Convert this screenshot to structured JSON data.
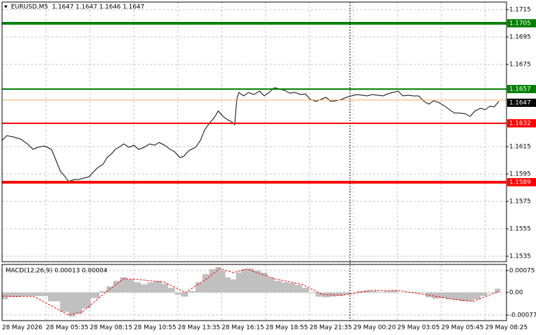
{
  "chart_data": [
    {
      "type": "line",
      "title": "EURUSD,M5  1.1647 1.1647 1.1646 1.1647",
      "color": "#000000",
      "x": [
        0,
        3.5,
        8.5,
        13.5,
        18.5,
        22.5,
        26,
        31,
        36,
        39.5,
        42.5,
        46,
        48.5,
        52.5,
        56,
        59.5,
        63.5,
        66,
        69.5,
        73.5,
        76.5,
        79.5,
        82.5,
        86,
        88.5,
        92.5,
        96,
        99.5,
        103.5,
        107.5,
        111,
        114.5,
        118.5,
        122.5,
        126,
        129.5,
        132.5,
        136,
        141,
        144.5,
        147.5,
        151,
        154.5,
        157.5,
        161,
        164.5,
        167.5,
        169.5,
        171,
        172.5,
        176,
        179.5,
        183.5,
        187.5,
        191,
        194.5,
        198.5,
        202.5,
        206,
        209.5,
        213.5,
        217.5,
        221,
        224.5,
        228.5,
        232.5,
        236,
        239.5,
        243.5,
        247.5,
        251,
        254.5,
        258.5,
        262.5,
        266,
        269.5,
        273.5,
        277.5,
        281,
        284.5,
        288.5,
        292,
        296,
        299.5,
        303.5,
        307.5,
        311,
        314.5,
        318.5,
        322.5,
        326,
        329.5,
        333.5,
        337.5,
        341,
        344.5,
        348.5,
        352,
        355.5,
        358.5,
        362
      ],
      "values": [
        1.16195,
        1.1623,
        1.1622,
        1.16205,
        1.1617,
        1.1613,
        1.16145,
        1.16155,
        1.1613,
        1.16045,
        1.1597,
        1.1593,
        1.15895,
        1.1591,
        1.1591,
        1.1592,
        1.1593,
        1.1596,
        1.15995,
        1.1602,
        1.1607,
        1.16095,
        1.1613,
        1.1615,
        1.1617,
        1.16145,
        1.1616,
        1.1613,
        1.16145,
        1.1617,
        1.1616,
        1.1618,
        1.1616,
        1.1613,
        1.1611,
        1.1607,
        1.1608,
        1.1612,
        1.16145,
        1.16195,
        1.1627,
        1.1632,
        1.1636,
        1.1641,
        1.1637,
        1.16345,
        1.1633,
        1.1631,
        1.16495,
        1.16545,
        1.1652,
        1.16545,
        1.1653,
        1.16555,
        1.1652,
        1.16545,
        1.1658,
        1.1657,
        1.1656,
        1.1654,
        1.16545,
        1.1653,
        1.16535,
        1.16495,
        1.1648,
        1.16495,
        1.1651,
        1.1648,
        1.16485,
        1.16495,
        1.1651,
        1.1652,
        1.1653,
        1.16525,
        1.1652,
        1.1653,
        1.16525,
        1.1652,
        1.16535,
        1.16545,
        1.16555,
        1.1652,
        1.16525,
        1.1652,
        1.1652,
        1.1648,
        1.1646,
        1.16485,
        1.1647,
        1.16445,
        1.1642,
        1.16395,
        1.16395,
        1.1639,
        1.1637,
        1.1641,
        1.1643,
        1.1642,
        1.16445,
        1.1644,
        1.1648
      ],
      "xlim": [
        0,
        367.5
      ],
      "xticks": [
        {
          "value": 0,
          "label": "28 May 2026"
        },
        {
          "value": 32,
          "label": "28 May 05:35"
        },
        {
          "value": 64,
          "label": "28 May 08:15"
        },
        {
          "value": 96,
          "label": "28 May 10:55"
        },
        {
          "value": 128,
          "label": "28 May 13:35"
        },
        {
          "value": 160,
          "label": "28 May 16:15"
        },
        {
          "value": 192,
          "label": "28 May 18:55"
        },
        {
          "value": 224,
          "label": "28 May 21:35"
        },
        {
          "value": 256,
          "label": "29 May 00:20"
        },
        {
          "value": 288,
          "label": "29 May 03:05"
        },
        {
          "value": 320,
          "label": "29 May 05:45"
        },
        {
          "value": 352,
          "label": "29 May 08:25"
        }
      ],
      "ylim": [
        1.1531,
        1.17205
      ],
      "yticks": [
        1.1715,
        1.1695,
        1.1675,
        1.1615,
        1.1595,
        1.1575,
        1.1555,
        1.1535
      ],
      "grid": true,
      "levels": [
        {
          "value": 1.1705,
          "color": "#008000"
        },
        {
          "value": 1.1657,
          "color": "#008000"
        },
        {
          "value": 1.1632,
          "color": "#ff0000"
        },
        {
          "value": 1.1589,
          "color": "#ff0000"
        }
      ],
      "ask": 1.1649,
      "ask_color": "#f4a460",
      "last_price": 1.1647
    },
    {
      "type": "macd",
      "title": "MACD(12,26,9) 0.00013 0.00004",
      "histogram_color": "#c0c0c0",
      "signal_color": "#ff0000",
      "histogram_x": [
        0,
        8.5,
        18.5,
        28.5,
        38.5,
        46,
        51,
        56,
        61,
        68.5,
        73.5,
        78.5,
        83.5,
        88.5,
        93.5,
        98.5,
        103.5,
        108.5,
        113.5,
        118.5,
        123.5,
        128.5,
        132.5,
        138.5,
        143.5,
        148.5,
        153.5,
        157.5,
        161,
        164.5,
        168.5,
        172.5,
        176,
        181,
        186,
        191,
        196,
        201,
        206,
        211,
        216,
        221,
        226,
        231,
        236,
        241,
        246,
        251,
        256,
        261,
        266,
        271,
        276,
        281,
        286,
        291,
        296,
        301,
        306,
        311,
        316,
        321,
        326,
        331,
        336,
        341,
        346,
        351,
        356,
        362
      ],
      "histogram": [
        -0.00023,
        -0.00016,
        -0.00012,
        -0.00012,
        -0.0003,
        -0.00066,
        -0.00082,
        -0.00073,
        -0.00054,
        -0.00019,
        5e-05,
        0.00021,
        0.0004,
        0.00052,
        0.00045,
        0.00035,
        0.00028,
        0.00035,
        0.0004,
        0.0003,
        0.00016,
        -7e-05,
        -0.00014,
        5e-05,
        0.00035,
        0.00063,
        0.0008,
        0.00087,
        0.00075,
        0.00052,
        0.00045,
        0.00068,
        0.0008,
        0.00082,
        0.00075,
        0.00068,
        0.00052,
        0.0004,
        0.00035,
        0.00033,
        0.00026,
        0.00016,
        -2e-05,
        -0.00014,
        -0.00016,
        -0.00014,
        -0.00012,
        -7e-05,
        0,
        5e-05,
        7e-05,
        5e-05,
        2e-05,
        5e-05,
        7e-05,
        0,
        0,
        2e-05,
        -2e-05,
        -0.00016,
        -0.00021,
        -0.00019,
        -0.00023,
        -0.00026,
        -0.0003,
        -0.0003,
        -0.00023,
        -0.00012,
        -2e-05,
        0.00013
      ],
      "signal_x": [
        0,
        23.5,
        48.5,
        58.5,
        73.5,
        88.5,
        98.5,
        118.5,
        133.5,
        148.5,
        158.5,
        168.5,
        178.5,
        198.5,
        218.5,
        233.5,
        248.5,
        268.5,
        288.5,
        308.5,
        328.5,
        343.5,
        362
      ],
      "signal": [
        -0.00012,
        -0.00014,
        -0.00077,
        -0.00066,
        -7e-05,
        0.00047,
        0.00045,
        0.00035,
        0,
        0.00045,
        0.00082,
        0.00068,
        0.0008,
        0.00047,
        0.00028,
        -7e-05,
        -9e-05,
        7e-05,
        7e-05,
        -7e-05,
        -0.00023,
        -0.0003,
        4e-05
      ],
      "ylim": [
        -0.00096,
        0.00096
      ],
      "yticks": [
        0.00075,
        {
          "value": 0,
          "label": "0.00"
        },
        -0.00077
      ],
      "grid": true
    }
  ]
}
